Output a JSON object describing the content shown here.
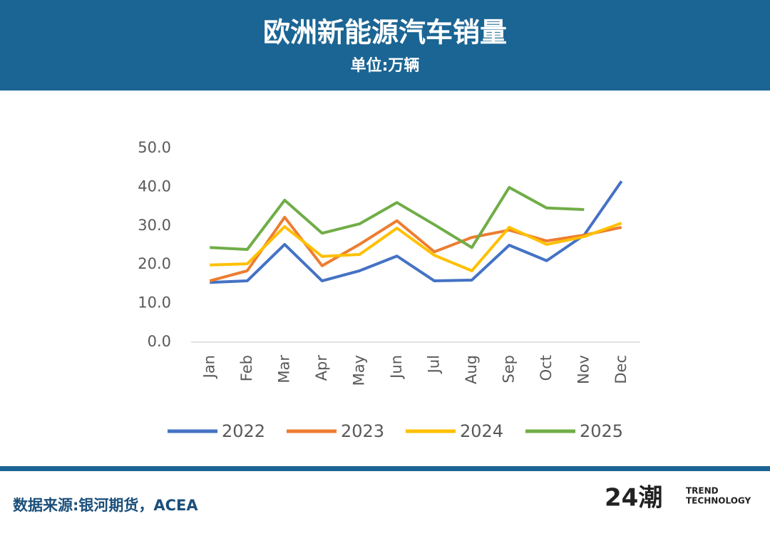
{
  "chart_data": {
    "type": "line",
    "title": "欧洲新能源汽车销量",
    "subtitle": "单位:万辆",
    "categories": [
      "Jan",
      "Feb",
      "Mar",
      "Apr",
      "May",
      "Jun",
      "Jul",
      "Aug",
      "Sep",
      "Oct",
      "Nov",
      "Dec"
    ],
    "series": [
      {
        "name": "2022",
        "color": "#4472c4",
        "values": [
          15.4,
          15.8,
          25.2,
          15.8,
          18.4,
          22.2,
          15.8,
          16.0,
          25.0,
          21.0,
          27.6,
          41.5
        ]
      },
      {
        "name": "2023",
        "color": "#ed7d31",
        "values": [
          15.8,
          18.4,
          32.2,
          19.7,
          25.2,
          31.3,
          23.3,
          27.0,
          28.9,
          26.1,
          27.6,
          29.6
        ]
      },
      {
        "name": "2024",
        "color": "#ffc000",
        "values": [
          19.9,
          20.2,
          29.8,
          22.1,
          22.6,
          29.4,
          22.4,
          18.4,
          29.6,
          25.2,
          27.2,
          30.7
        ]
      },
      {
        "name": "2025",
        "color": "#70ad47",
        "values": [
          24.4,
          23.9,
          36.6,
          28.1,
          30.5,
          36.0,
          30.3,
          24.4,
          39.9,
          34.6,
          34.2,
          null
        ]
      }
    ],
    "ylim": [
      0,
      50
    ],
    "yticks": [
      {
        "value": 0,
        "label": "0.0"
      },
      {
        "value": 10,
        "label": "10.0"
      },
      {
        "value": 20,
        "label": "20.0"
      },
      {
        "value": 30,
        "label": "30.0"
      },
      {
        "value": 40,
        "label": "40.0"
      },
      {
        "value": 50,
        "label": "50.0"
      }
    ],
    "legend": "bottom",
    "source": "数据来源:银河期货，ACEA",
    "logo": {
      "mark": "24潮",
      "line1": "TREND",
      "line2": "TECHNOLOGY"
    }
  }
}
